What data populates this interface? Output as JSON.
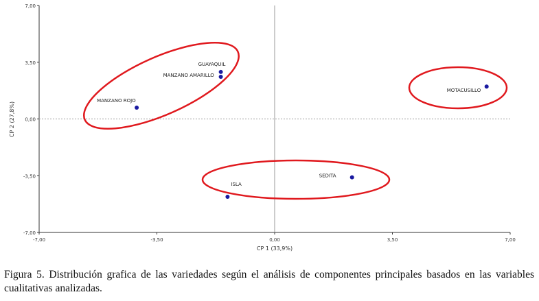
{
  "chart_data": {
    "type": "scatter",
    "xlabel": "CP 1 (33,9%)",
    "ylabel": "CP 2 (27,8%)",
    "xlim": [
      -7,
      7
    ],
    "ylim": [
      -7,
      7
    ],
    "xticks": [
      "-7,00",
      "-3,50",
      "0,00",
      "3,50",
      "7,00"
    ],
    "yticks": [
      "7,00",
      "3,50",
      "0,00",
      "-3,50",
      "-7,00"
    ],
    "point_color": "#1a1aa0",
    "ellipse_color": "#e0191e",
    "points": [
      {
        "label": "GUAYAQUIL",
        "x": -1.6,
        "y": 2.9
      },
      {
        "label": "MANZANO AMARILLO",
        "x": -1.6,
        "y": 2.6
      },
      {
        "label": "MANZANO ROJO",
        "x": -4.1,
        "y": 0.7
      },
      {
        "label": "MOTACUSILLO",
        "x": 6.3,
        "y": 2.0
      },
      {
        "label": "SEDITA",
        "x": 2.3,
        "y": -3.6
      },
      {
        "label": "ISLA",
        "x": -1.4,
        "y": -4.8
      }
    ]
  },
  "caption": "Figura 5. Distribución grafica de las variedades según el análisis de componentes principales basados en las variables cualitativas analizadas."
}
